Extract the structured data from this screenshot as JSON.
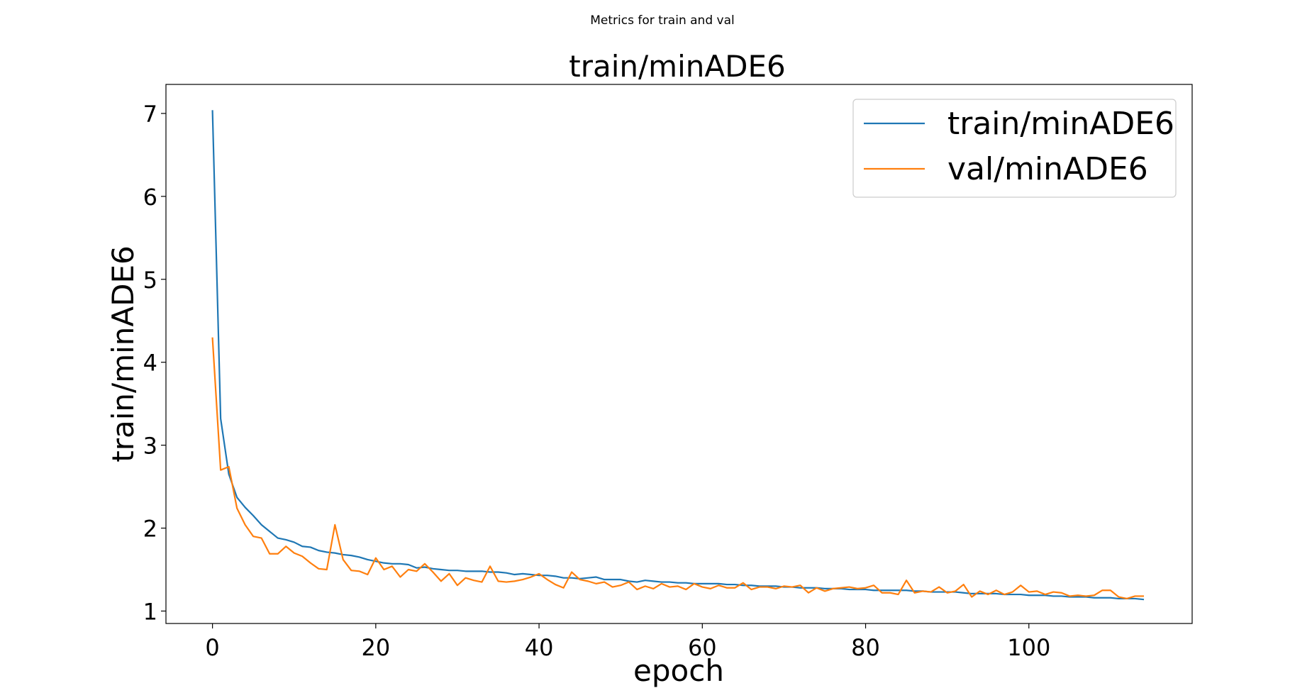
{
  "figure": {
    "suptitle": "Metrics for train and val"
  },
  "chart_data": {
    "type": "line",
    "title": "train/minADE6",
    "xlabel": "epoch",
    "ylabel": "train/minADE6",
    "xlim": [
      -5.7,
      120
    ],
    "ylim": [
      0.85,
      7.35
    ],
    "xticks": [
      0,
      20,
      40,
      60,
      80,
      100
    ],
    "yticks": [
      1,
      2,
      3,
      4,
      5,
      6,
      7
    ],
    "grid": false,
    "legend_position": "top-right",
    "series": [
      {
        "name": "train/minADE6",
        "color": "#1f77b4",
        "x": [
          0,
          1,
          2,
          3,
          4,
          5,
          6,
          7,
          8,
          9,
          10,
          11,
          12,
          13,
          14,
          15,
          16,
          17,
          18,
          19,
          20,
          21,
          22,
          23,
          24,
          25,
          26,
          27,
          28,
          29,
          30,
          31,
          32,
          33,
          34,
          35,
          36,
          37,
          38,
          39,
          40,
          41,
          42,
          43,
          44,
          45,
          46,
          47,
          48,
          49,
          50,
          51,
          52,
          53,
          54,
          55,
          56,
          57,
          58,
          59,
          60,
          61,
          62,
          63,
          64,
          65,
          66,
          67,
          68,
          69,
          70,
          71,
          72,
          73,
          74,
          75,
          76,
          77,
          78,
          79,
          80,
          81,
          82,
          83,
          84,
          85,
          86,
          87,
          88,
          89,
          90,
          91,
          92,
          93,
          94,
          95,
          96,
          97,
          98,
          99,
          100,
          101,
          102,
          103,
          104,
          105,
          106,
          107,
          108,
          109,
          110,
          111,
          112,
          113,
          114
        ],
        "values": [
          7.03,
          3.32,
          2.65,
          2.37,
          2.25,
          2.15,
          2.04,
          1.96,
          1.88,
          1.86,
          1.83,
          1.78,
          1.77,
          1.73,
          1.71,
          1.7,
          1.68,
          1.67,
          1.65,
          1.62,
          1.6,
          1.58,
          1.57,
          1.57,
          1.56,
          1.52,
          1.53,
          1.51,
          1.5,
          1.49,
          1.49,
          1.48,
          1.48,
          1.48,
          1.47,
          1.47,
          1.46,
          1.44,
          1.45,
          1.44,
          1.43,
          1.43,
          1.42,
          1.4,
          1.4,
          1.39,
          1.4,
          1.41,
          1.38,
          1.38,
          1.38,
          1.36,
          1.35,
          1.37,
          1.36,
          1.35,
          1.35,
          1.34,
          1.34,
          1.33,
          1.33,
          1.33,
          1.33,
          1.32,
          1.32,
          1.31,
          1.31,
          1.3,
          1.3,
          1.3,
          1.29,
          1.29,
          1.28,
          1.28,
          1.28,
          1.27,
          1.27,
          1.27,
          1.26,
          1.26,
          1.26,
          1.25,
          1.25,
          1.25,
          1.25,
          1.25,
          1.24,
          1.24,
          1.23,
          1.23,
          1.23,
          1.23,
          1.22,
          1.21,
          1.21,
          1.21,
          1.21,
          1.2,
          1.2,
          1.2,
          1.19,
          1.19,
          1.19,
          1.18,
          1.18,
          1.17,
          1.17,
          1.17,
          1.16,
          1.16,
          1.16,
          1.15,
          1.15,
          1.15,
          1.14
        ]
      },
      {
        "name": "val/minADE6",
        "color": "#ff7f0e",
        "x": [
          0,
          1,
          2,
          3,
          4,
          5,
          6,
          7,
          8,
          9,
          10,
          11,
          12,
          13,
          14,
          15,
          16,
          17,
          18,
          19,
          20,
          21,
          22,
          23,
          24,
          25,
          26,
          27,
          28,
          29,
          30,
          31,
          32,
          33,
          34,
          35,
          36,
          37,
          38,
          39,
          40,
          41,
          42,
          43,
          44,
          45,
          46,
          47,
          48,
          49,
          50,
          51,
          52,
          53,
          54,
          55,
          56,
          57,
          58,
          59,
          60,
          61,
          62,
          63,
          64,
          65,
          66,
          67,
          68,
          69,
          70,
          71,
          72,
          73,
          74,
          75,
          76,
          77,
          78,
          79,
          80,
          81,
          82,
          83,
          84,
          85,
          86,
          87,
          88,
          89,
          90,
          91,
          92,
          93,
          94,
          95,
          96,
          97,
          98,
          99,
          100,
          101,
          102,
          103,
          104,
          105,
          106,
          107,
          108,
          109,
          110,
          111,
          112,
          113,
          114
        ],
        "values": [
          4.29,
          2.7,
          2.74,
          2.24,
          2.04,
          1.9,
          1.88,
          1.69,
          1.69,
          1.78,
          1.7,
          1.66,
          1.58,
          1.51,
          1.5,
          2.04,
          1.62,
          1.49,
          1.48,
          1.44,
          1.64,
          1.5,
          1.54,
          1.41,
          1.5,
          1.48,
          1.57,
          1.47,
          1.36,
          1.45,
          1.31,
          1.4,
          1.37,
          1.35,
          1.54,
          1.36,
          1.35,
          1.36,
          1.38,
          1.41,
          1.45,
          1.38,
          1.32,
          1.28,
          1.47,
          1.38,
          1.36,
          1.33,
          1.35,
          1.29,
          1.31,
          1.35,
          1.26,
          1.3,
          1.27,
          1.33,
          1.29,
          1.3,
          1.26,
          1.33,
          1.29,
          1.27,
          1.31,
          1.28,
          1.28,
          1.34,
          1.26,
          1.29,
          1.29,
          1.27,
          1.3,
          1.29,
          1.31,
          1.22,
          1.28,
          1.24,
          1.27,
          1.28,
          1.29,
          1.27,
          1.28,
          1.31,
          1.22,
          1.22,
          1.2,
          1.37,
          1.22,
          1.24,
          1.23,
          1.29,
          1.22,
          1.24,
          1.32,
          1.17,
          1.24,
          1.2,
          1.25,
          1.2,
          1.23,
          1.31,
          1.23,
          1.24,
          1.2,
          1.23,
          1.22,
          1.18,
          1.19,
          1.18,
          1.19,
          1.25,
          1.25,
          1.17,
          1.15,
          1.18,
          1.18
        ]
      }
    ]
  }
}
